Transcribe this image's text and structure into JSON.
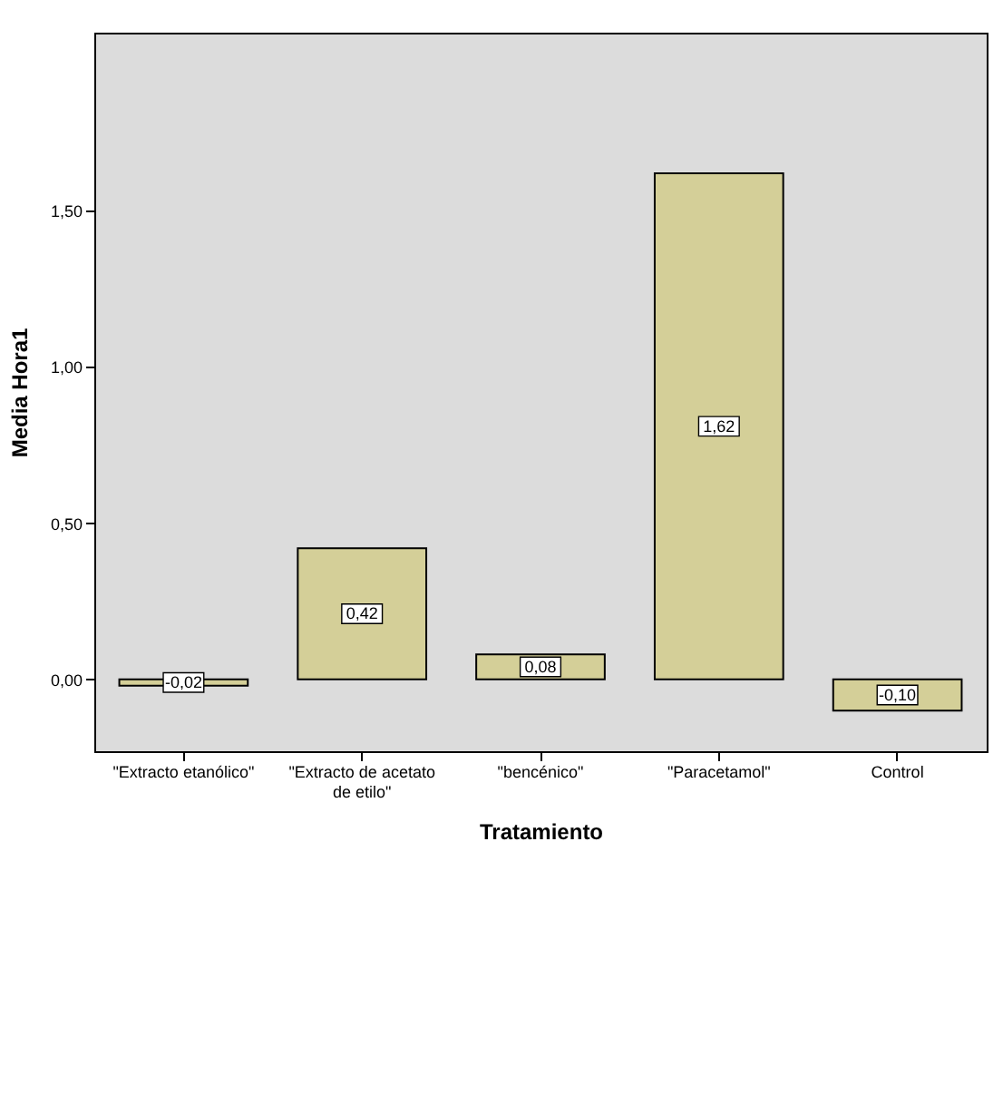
{
  "chart_data": {
    "type": "bar",
    "xlabel": "Tratamiento",
    "ylabel": "Media Hora1",
    "categories": [
      "\"Extracto etanólico\"",
      "\"Extracto de acetato de etilo\"",
      "\"bencénico\"",
      "\"Paracetamol\"",
      "Control"
    ],
    "values": [
      -0.02,
      0.42,
      0.08,
      1.62,
      -0.1
    ],
    "color": "#d4cf98",
    "ylim": [
      -0.23,
      2.07
    ],
    "yticks": [
      {
        "value": 0,
        "label": "0,00"
      },
      {
        "value": 0.5,
        "label": "0,50"
      },
      {
        "value": 1,
        "label": "1,00"
      },
      {
        "value": 1.5,
        "label": "1,50"
      }
    ],
    "value_labels": [
      "-0,02",
      "0,42",
      "0,08",
      "1,62",
      "-0,10"
    ],
    "grid": false
  }
}
